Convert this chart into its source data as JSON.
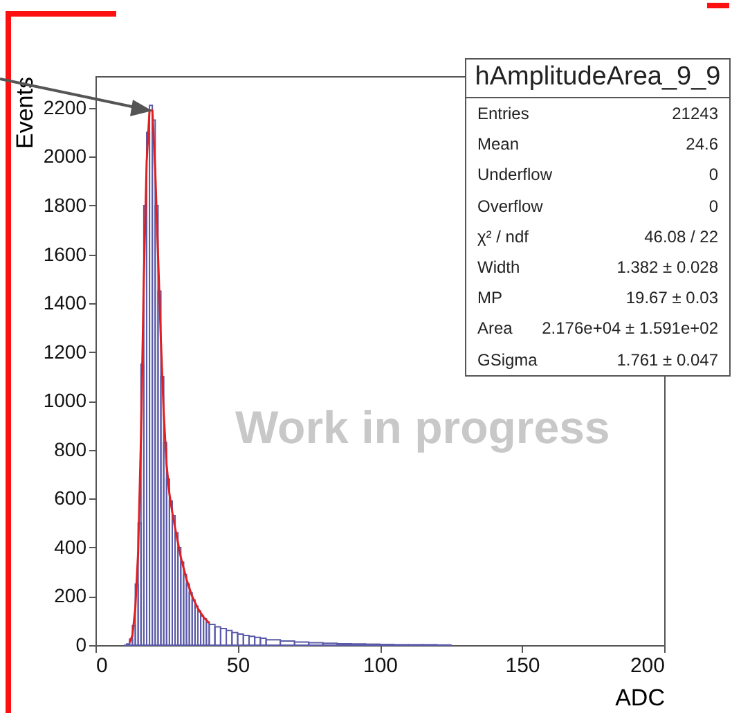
{
  "chart_data": {
    "type": "histogram",
    "title": "hAmplitudeArea_9_9",
    "xlabel": "ADC",
    "ylabel": "Events",
    "bins": [
      10,
      11,
      12,
      13,
      14,
      15,
      16,
      17,
      18,
      19,
      20,
      21,
      22,
      23,
      24,
      25,
      26,
      27,
      28,
      29,
      30,
      31,
      32,
      33,
      34,
      35,
      36,
      37,
      38,
      39,
      40,
      42,
      44,
      46,
      48,
      50,
      52,
      54,
      56,
      58,
      60,
      65,
      70,
      75,
      80,
      85,
      90,
      95,
      100,
      105,
      110,
      115,
      120,
      125
    ],
    "series": [
      {
        "color": "#5a5aa8",
        "values": [
          0,
          5,
          25,
          80,
          250,
          500,
          1150,
          1800,
          2100,
          2210,
          2150,
          1800,
          1450,
          1100,
          830,
          680,
          590,
          530,
          460,
          400,
          340,
          290,
          250,
          215,
          185,
          160,
          140,
          120,
          108,
          95,
          85,
          75,
          68,
          60,
          52,
          45,
          40,
          36,
          32,
          28,
          22,
          17,
          13,
          10,
          8,
          6,
          5,
          4,
          3,
          2,
          2,
          2,
          1
        ]
      },
      {
        "type": "line",
        "color": "#e02020",
        "x": [
          12,
          13,
          14,
          15,
          16,
          17,
          18,
          19,
          20,
          21,
          22,
          23,
          24,
          25,
          26,
          27,
          28,
          29,
          30,
          32,
          34,
          36,
          38,
          40
        ],
        "values": [
          10,
          40,
          150,
          380,
          850,
          1500,
          1980,
          2190,
          2190,
          1950,
          1600,
          1250,
          950,
          740,
          620,
          545,
          480,
          420,
          360,
          270,
          200,
          150,
          115,
          90
        ]
      }
    ],
    "xlim": [
      0,
      200
    ],
    "xticks": [
      0,
      50,
      100,
      150,
      200
    ],
    "ylim": [
      0,
      2330
    ],
    "yticks": [
      0,
      200,
      400,
      600,
      800,
      1000,
      1200,
      1400,
      1600,
      1800,
      2000,
      2200
    ],
    "grid": false,
    "annotations": [
      "Entries",
      "21243",
      "Mean",
      "24.6",
      "Underflow",
      "0",
      "Overflow",
      "0",
      "χ² / ndf",
      "46.08 / 22",
      "Width",
      "1.382 ± 0.028",
      "MP",
      "19.67 ± 0.03",
      "Area",
      "2.176e+04 ± 1.591e+02",
      "GSigma",
      "1.761 ± 0.047",
      "Work in progress"
    ]
  }
}
